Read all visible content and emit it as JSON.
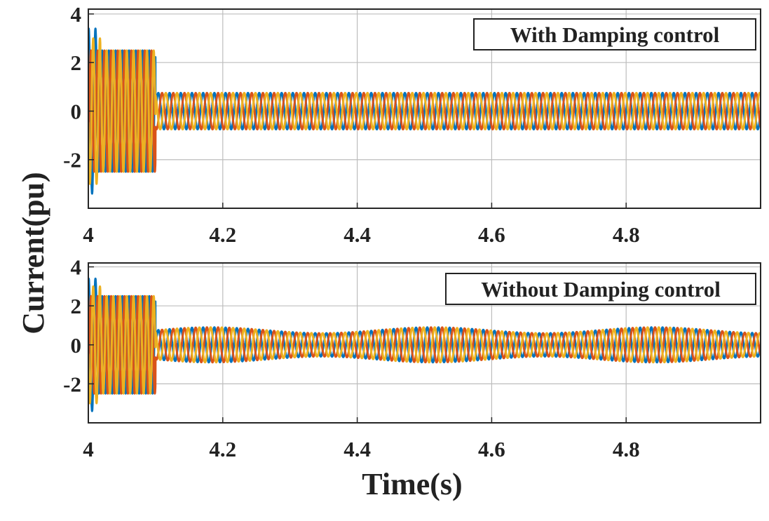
{
  "chart_data": [
    {
      "type": "line",
      "panel": "top",
      "legend_text": "With Damping control",
      "legend_position": "top-right",
      "grid": true,
      "xlim": [
        4.0,
        5.0
      ],
      "ylim": [
        -4,
        4.2
      ],
      "x_ticks": [
        4.0,
        4.2,
        4.4,
        4.6,
        4.8
      ],
      "x_tick_labels": [
        "4",
        "4.2",
        "4.4",
        "4.6",
        "4.8"
      ],
      "y_ticks": [
        -2,
        0,
        2,
        4
      ],
      "y_tick_labels": [
        "-2",
        "0",
        "2",
        "4"
      ],
      "fault_interval": [
        4.0,
        4.1
      ],
      "fault_amplitude": 2.5,
      "initial_peak": 3.4,
      "frequency_hz": 60,
      "steady_state_amplitude": 0.75,
      "phases": 3,
      "series_colors": [
        "#0072BD",
        "#D95319",
        "#EDB120"
      ]
    },
    {
      "type": "line",
      "panel": "bottom",
      "legend_text": "Without Damping control",
      "legend_position": "top-right",
      "grid": true,
      "xlim": [
        4.0,
        5.0
      ],
      "ylim": [
        -4,
        4.2
      ],
      "x_ticks": [
        4.0,
        4.2,
        4.4,
        4.6,
        4.8
      ],
      "x_tick_labels": [
        "4",
        "4.2",
        "4.4",
        "4.6",
        "4.8"
      ],
      "y_ticks": [
        -2,
        0,
        2,
        4
      ],
      "y_tick_labels": [
        "-2",
        "0",
        "2",
        "4"
      ],
      "fault_interval": [
        4.0,
        4.1
      ],
      "fault_amplitude": 2.5,
      "initial_peak": 3.4,
      "frequency_hz": 60,
      "steady_state_amplitude": 0.75,
      "subsynchronous_oscillation": {
        "amplitude": 0.15,
        "period_s": 0.33
      },
      "phases": 3,
      "series_colors": [
        "#0072BD",
        "#D95319",
        "#EDB120"
      ]
    }
  ],
  "ylabel": "Current(pu)",
  "xlabel": "Time(s)"
}
